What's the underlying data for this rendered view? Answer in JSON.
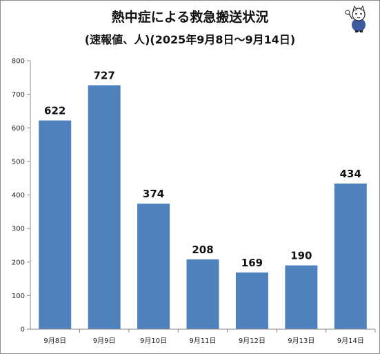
{
  "chart_data": {
    "type": "bar",
    "title": "熱中症による救急搬送状況",
    "subtitle": "(速報値、人)(2025年9月8日～9月14日)",
    "categories": [
      "9月8日",
      "9月9日",
      "9月10日",
      "9月11日",
      "9月12日",
      "9月13日",
      "9月14日"
    ],
    "values": [
      622,
      727,
      374,
      208,
      169,
      190,
      434
    ],
    "ylim": [
      0,
      800
    ],
    "yticks": [
      0,
      100,
      200,
      300,
      400,
      500,
      600,
      700,
      800
    ],
    "grid": false,
    "bar_color": "#4f81bd",
    "legend": "none"
  }
}
